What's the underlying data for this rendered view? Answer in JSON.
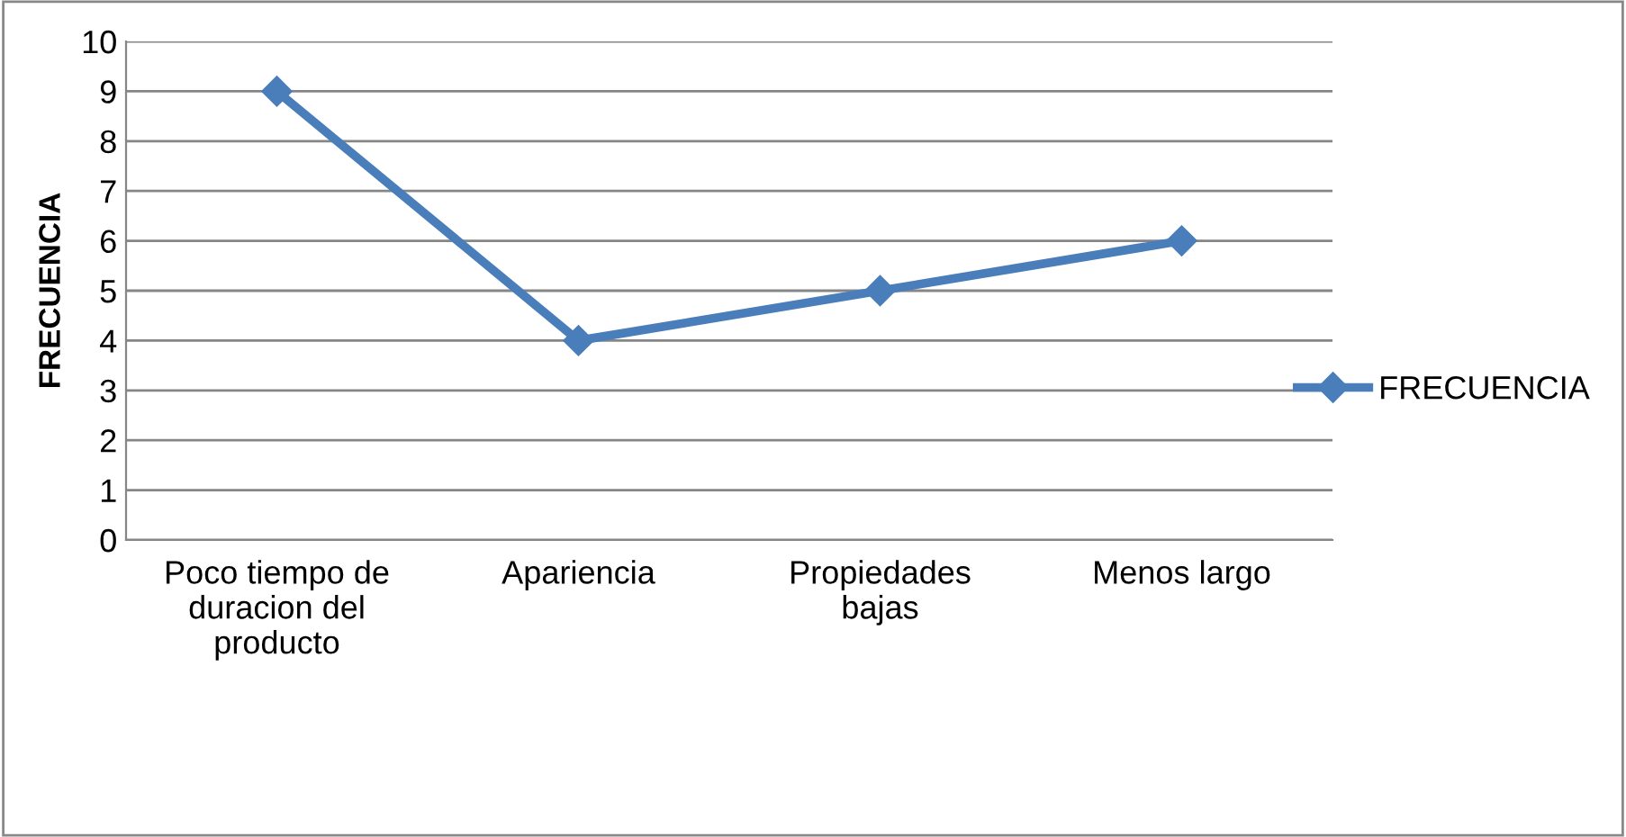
{
  "chart_data": {
    "type": "line",
    "ylabel": "FRECUENCIA",
    "categories": [
      "Poco tiempo de\nduracion del\nproducto",
      "Apariencia",
      "Propiedades\nbajas",
      "Menos largo"
    ],
    "series": [
      {
        "name": "FRECUENCIA",
        "color": "#4a7ebb",
        "values": [
          9,
          4,
          5,
          6
        ]
      }
    ],
    "ylim": [
      0,
      10
    ],
    "yticks": [
      0,
      1,
      2,
      3,
      4,
      5,
      6,
      7,
      8,
      9,
      10
    ],
    "grid": "y",
    "legend": "right",
    "marker": "diamond",
    "line_style": "solid"
  }
}
